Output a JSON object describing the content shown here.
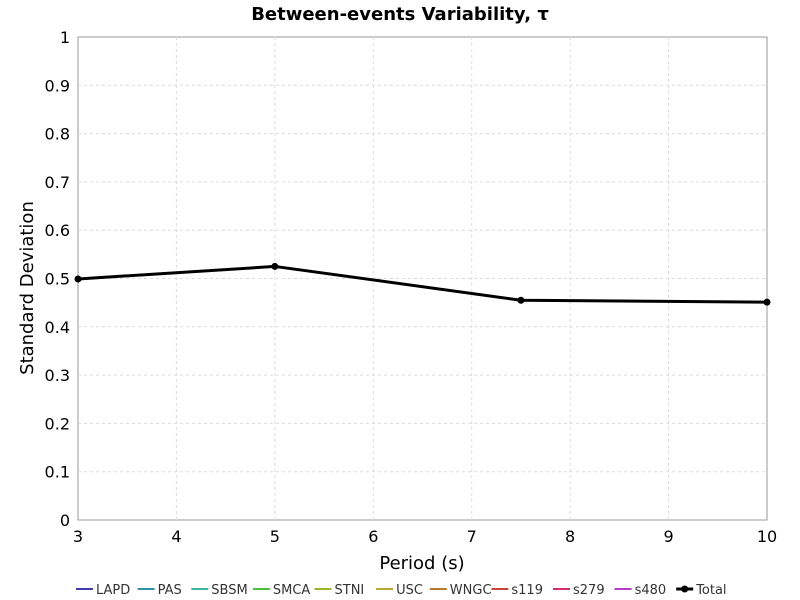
{
  "chart_data": {
    "type": "line",
    "title": "Between-events Variability, τ",
    "xlabel": "Period (s)",
    "ylabel": "Standard Deviation",
    "xlim": [
      3,
      10
    ],
    "ylim": [
      0,
      1
    ],
    "xticks": [
      "3",
      "4",
      "5",
      "6",
      "7",
      "8",
      "9",
      "10"
    ],
    "yticks": [
      "0",
      "0.1",
      "0.2",
      "0.3",
      "0.4",
      "0.5",
      "0.6",
      "0.7",
      "0.8",
      "0.9",
      "1"
    ],
    "grid": true,
    "legend_position": "bottom",
    "series": [
      {
        "name": "LAPD",
        "color": "#3c3caa",
        "x": [],
        "y": []
      },
      {
        "name": "PAS",
        "color": "#2e8fa8",
        "x": [],
        "y": []
      },
      {
        "name": "SBSM",
        "color": "#3cb4a0",
        "x": [],
        "y": []
      },
      {
        "name": "SMCA",
        "color": "#4cbf3c",
        "x": [],
        "y": []
      },
      {
        "name": "STNI",
        "color": "#9ab82e",
        "x": [],
        "y": []
      },
      {
        "name": "USC",
        "color": "#b8a82e",
        "x": [],
        "y": []
      },
      {
        "name": "WNGC",
        "color": "#b87a2e",
        "x": [],
        "y": []
      },
      {
        "name": "s119",
        "color": "#c84638",
        "x": [],
        "y": []
      },
      {
        "name": "s279",
        "color": "#d02e6e",
        "x": [],
        "y": []
      },
      {
        "name": "s480",
        "color": "#b43cc8",
        "x": [],
        "y": []
      },
      {
        "name": "Total",
        "color": "#000000",
        "x": [
          3,
          5,
          7.5,
          10
        ],
        "y": [
          0.499,
          0.525,
          0.455,
          0.451
        ]
      }
    ]
  }
}
